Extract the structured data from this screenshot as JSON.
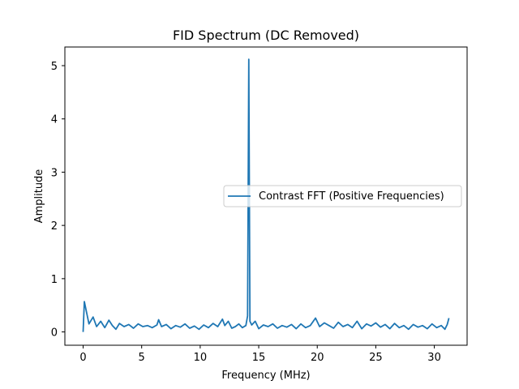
{
  "chart_data": {
    "type": "line",
    "title": "FID Spectrum (DC Removed)",
    "xlabel": "Frequency (MHz)",
    "ylabel": "Amplitude",
    "xlim": [
      -1.56,
      32.8
    ],
    "ylim": [
      -0.25,
      5.35
    ],
    "xticks": [
      0,
      5,
      10,
      15,
      20,
      25,
      30
    ],
    "yticks": [
      0,
      1,
      2,
      3,
      4,
      5
    ],
    "grid": false,
    "legend_position": "center-right",
    "colors": {
      "series": "#1f77b4"
    },
    "series": [
      {
        "name": "Contrast FFT (Positive Frequencies)",
        "x": [
          0.0,
          0.1,
          0.5,
          0.85,
          1.15,
          1.5,
          1.85,
          2.2,
          2.5,
          2.8,
          3.1,
          3.5,
          3.9,
          4.3,
          4.7,
          5.1,
          5.5,
          5.9,
          6.3,
          6.45,
          6.7,
          7.1,
          7.5,
          7.9,
          8.3,
          8.7,
          9.1,
          9.5,
          9.9,
          10.3,
          10.7,
          11.1,
          11.5,
          11.9,
          12.1,
          12.4,
          12.7,
          13.0,
          13.3,
          13.6,
          13.9,
          14.05,
          14.15,
          14.25,
          14.4,
          14.7,
          15.0,
          15.4,
          15.8,
          16.2,
          16.6,
          17.0,
          17.4,
          17.8,
          18.2,
          18.6,
          19.0,
          19.4,
          19.85,
          20.2,
          20.6,
          21.0,
          21.4,
          21.8,
          22.2,
          22.6,
          23.0,
          23.4,
          23.8,
          24.2,
          24.6,
          25.0,
          25.4,
          25.8,
          26.2,
          26.6,
          27.0,
          27.4,
          27.8,
          28.2,
          28.6,
          29.0,
          29.4,
          29.8,
          30.2,
          30.6,
          30.9,
          31.1,
          31.25
        ],
        "y": [
          0.0,
          0.57,
          0.15,
          0.28,
          0.1,
          0.2,
          0.08,
          0.22,
          0.12,
          0.05,
          0.16,
          0.1,
          0.14,
          0.07,
          0.15,
          0.1,
          0.12,
          0.08,
          0.13,
          0.23,
          0.1,
          0.14,
          0.06,
          0.12,
          0.09,
          0.15,
          0.07,
          0.11,
          0.05,
          0.13,
          0.08,
          0.16,
          0.1,
          0.24,
          0.12,
          0.2,
          0.07,
          0.1,
          0.15,
          0.08,
          0.12,
          0.3,
          5.12,
          0.2,
          0.13,
          0.2,
          0.06,
          0.13,
          0.1,
          0.15,
          0.07,
          0.12,
          0.09,
          0.14,
          0.06,
          0.15,
          0.08,
          0.12,
          0.26,
          0.1,
          0.17,
          0.12,
          0.07,
          0.18,
          0.1,
          0.14,
          0.08,
          0.2,
          0.06,
          0.15,
          0.11,
          0.17,
          0.09,
          0.14,
          0.06,
          0.16,
          0.08,
          0.12,
          0.05,
          0.14,
          0.09,
          0.12,
          0.06,
          0.15,
          0.08,
          0.12,
          0.05,
          0.14,
          0.26
        ]
      }
    ]
  }
}
